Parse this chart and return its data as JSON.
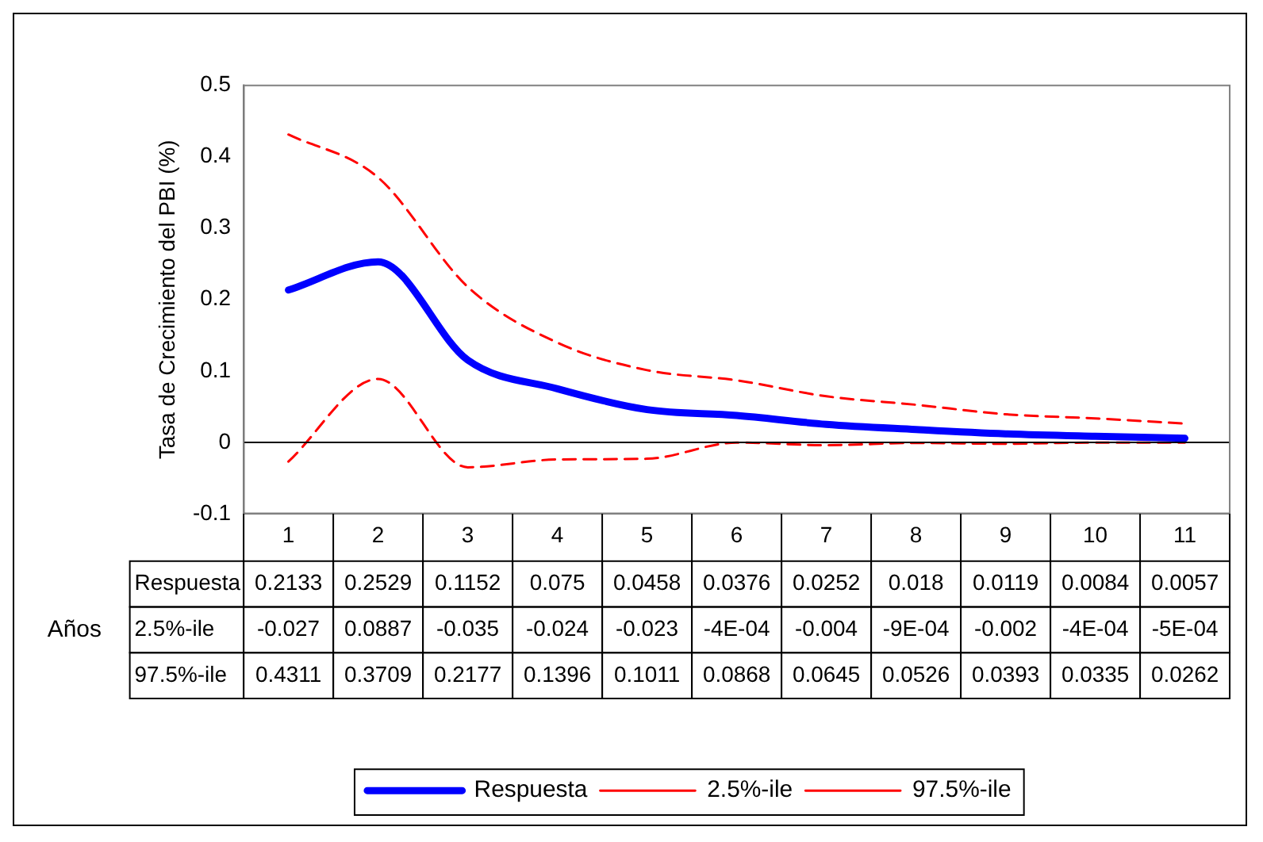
{
  "chart_data": {
    "type": "line",
    "xlabel": "Años",
    "ylabel": "Tasa de Crecimiento del PBI (%)",
    "categories": [
      "1",
      "2",
      "3",
      "4",
      "5",
      "6",
      "7",
      "8",
      "9",
      "10",
      "11"
    ],
    "ylim": [
      -0.1,
      0.5
    ],
    "yticks": [
      -0.1,
      0,
      0.1,
      0.2,
      0.3,
      0.4,
      0.5
    ],
    "grid": false,
    "legend": "bottom",
    "marker": "none",
    "ref_lines": [
      {
        "axis": "y",
        "value": 0,
        "color": "#000000"
      }
    ],
    "series": [
      {
        "name": "Respuesta",
        "color": "#0000ff",
        "line_style": "solid",
        "values": [
          0.2133,
          0.2529,
          0.1152,
          0.075,
          0.0458,
          0.0376,
          0.0252,
          0.018,
          0.0119,
          0.0084,
          0.0057
        ],
        "value_labels": [
          "0.2133",
          "0.2529",
          "0.1152",
          "0.075",
          "0.0458",
          "0.0376",
          "0.0252",
          "0.018",
          "0.0119",
          "0.0084",
          "0.0057"
        ]
      },
      {
        "name": "2.5%-ile",
        "color": "#ff0000",
        "line_style": "dashed",
        "values": [
          -0.027,
          0.0887,
          -0.035,
          -0.024,
          -0.023,
          -0.0004,
          -0.004,
          -0.0009,
          -0.002,
          -0.0004,
          -0.0005
        ],
        "value_labels": [
          "-0.027",
          "0.0887",
          "-0.035",
          "-0.024",
          "-0.023",
          "-4E-04",
          "-0.004",
          "-9E-04",
          "-0.002",
          "-4E-04",
          "-5E-04"
        ]
      },
      {
        "name": "97.5%-ile",
        "color": "#ff0000",
        "line_style": "dashed",
        "values": [
          0.4311,
          0.3709,
          0.2177,
          0.1396,
          0.1011,
          0.0868,
          0.0645,
          0.0526,
          0.0393,
          0.0335,
          0.0262
        ],
        "value_labels": [
          "0.4311",
          "0.3709",
          "0.2177",
          "0.1396",
          "0.1011",
          "0.0868",
          "0.0645",
          "0.0526",
          "0.0393",
          "0.0335",
          "0.0262"
        ]
      }
    ]
  }
}
